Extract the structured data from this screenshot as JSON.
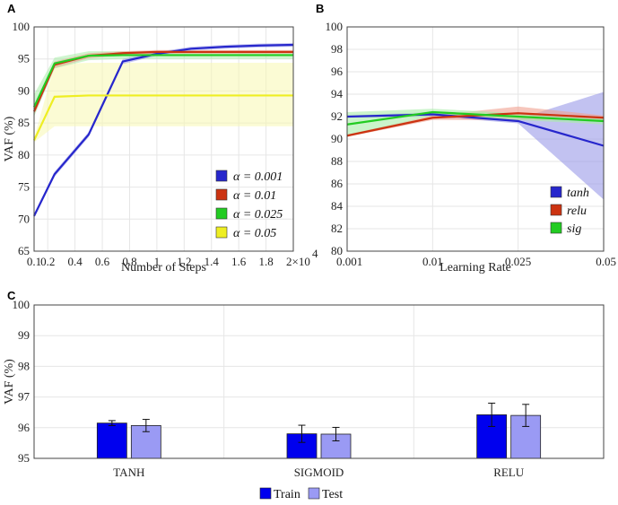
{
  "panels": {
    "a": "A",
    "b": "B",
    "c": "C"
  },
  "chart_data": [
    {
      "type": "line",
      "panel": "A",
      "xlabel": "Number of Steps",
      "ylabel": "VAF (%)",
      "xlim": [
        0.1,
        2.0
      ],
      "ylim": [
        65,
        100
      ],
      "x_exponent_label": "×10",
      "x_exponent_sup": "4",
      "x_multiplier": "2",
      "x_ticks": [
        0.1,
        0.2,
        0.4,
        0.6,
        0.8,
        1,
        1.2,
        1.4,
        1.6,
        1.8,
        2
      ],
      "x_tick_labels": [
        "0.1",
        "0.2",
        "0.4",
        "0.6",
        "0.8",
        "1",
        "1.2",
        "1.4",
        "1.6",
        "1.8",
        ""
      ],
      "y_ticks": [
        65,
        70,
        75,
        80,
        85,
        90,
        95,
        100
      ],
      "x": [
        0.1,
        0.25,
        0.5,
        0.75,
        1.0,
        1.25,
        1.5,
        1.75,
        2.0
      ],
      "series": [
        {
          "name": "α = 0.001",
          "color": "#2626cc",
          "band": "#9a9ae8",
          "values": [
            70.5,
            77.0,
            83.2,
            94.6,
            95.8,
            96.6,
            96.9,
            97.1,
            97.2
          ],
          "lower": [
            70.2,
            76.6,
            82.8,
            94.2,
            95.5,
            96.3,
            96.6,
            96.8,
            96.9
          ],
          "upper": [
            70.8,
            77.4,
            83.6,
            95.0,
            96.1,
            96.9,
            97.2,
            97.4,
            97.5
          ]
        },
        {
          "name": "α = 0.01",
          "color": "#cc3311",
          "band": "#f0a090",
          "values": [
            86.8,
            94.1,
            95.5,
            95.9,
            96.1,
            96.1,
            96.1,
            96.1,
            96.1
          ],
          "lower": [
            86.3,
            93.6,
            95.1,
            95.6,
            95.8,
            95.8,
            95.8,
            95.8,
            95.8
          ],
          "upper": [
            87.3,
            94.6,
            95.9,
            96.2,
            96.4,
            96.4,
            96.4,
            96.4,
            96.4
          ]
        },
        {
          "name": "α = 0.025",
          "color": "#22cc22",
          "band": "#a8eca8",
          "values": [
            87.5,
            94.3,
            95.5,
            95.6,
            95.6,
            95.6,
            95.6,
            95.6,
            95.6
          ],
          "lower": [
            86.0,
            93.5,
            94.8,
            95.0,
            95.0,
            95.0,
            95.0,
            95.0,
            95.0
          ],
          "upper": [
            89.5,
            95.2,
            96.2,
            96.2,
            96.2,
            96.2,
            96.2,
            96.2,
            96.2
          ]
        },
        {
          "name": "α = 0.05",
          "color": "#eeee22",
          "band": "#f7f7b0",
          "values": [
            82.3,
            89.1,
            89.3,
            89.3,
            89.3,
            89.3,
            89.3,
            89.3,
            89.3
          ],
          "lower": [
            82.0,
            84.5,
            84.5,
            84.5,
            84.5,
            84.5,
            84.5,
            84.5,
            84.5
          ],
          "upper": [
            82.6,
            94.2,
            94.4,
            94.4,
            94.4,
            94.4,
            94.4,
            94.4,
            94.4
          ]
        }
      ],
      "legend": "bottom-right",
      "grid": true
    },
    {
      "type": "line",
      "panel": "B",
      "xlabel": "Learning Rate",
      "ylabel": "",
      "categories": [
        "0.001",
        "0.01",
        "0.025",
        "0.05"
      ],
      "ylim": [
        80,
        100
      ],
      "y_ticks": [
        80,
        82,
        84,
        86,
        88,
        90,
        92,
        94,
        96,
        98,
        100
      ],
      "series": [
        {
          "name": "tanh",
          "color": "#2626cc",
          "band": "#9a9ae8",
          "values": [
            92.0,
            92.2,
            91.6,
            89.4
          ],
          "lower": [
            91.9,
            92.0,
            91.4,
            84.6
          ],
          "upper": [
            92.1,
            92.4,
            91.8,
            94.2
          ]
        },
        {
          "name": "relu",
          "color": "#cc3311",
          "band": "#f0a090",
          "values": [
            90.3,
            91.9,
            92.3,
            91.9
          ],
          "lower": [
            90.2,
            91.7,
            91.7,
            91.7
          ],
          "upper": [
            90.4,
            92.1,
            92.9,
            92.1
          ]
        },
        {
          "name": "sig",
          "color": "#22cc22",
          "band": "#a8eca8",
          "values": [
            91.3,
            92.4,
            92.0,
            91.6
          ],
          "lower": [
            90.2,
            92.1,
            91.7,
            91.3
          ],
          "upper": [
            92.4,
            92.7,
            92.3,
            91.9
          ]
        }
      ],
      "legend": "bottom-right",
      "grid": true
    },
    {
      "type": "bar",
      "panel": "C",
      "xlabel": "",
      "ylabel": "VAF (%)",
      "categories": [
        "TANH",
        "SIGMOID",
        "RELU"
      ],
      "ylim": [
        95,
        100
      ],
      "y_ticks": [
        95,
        96,
        97,
        98,
        99,
        100
      ],
      "series": [
        {
          "name": "Train",
          "color": "#0000ee",
          "values": [
            96.15,
            95.8,
            96.42
          ],
          "errors": [
            0.08,
            0.28,
            0.38
          ]
        },
        {
          "name": "Test",
          "color": "#9a9af4",
          "values": [
            96.07,
            95.79,
            96.4
          ],
          "errors": [
            0.2,
            0.22,
            0.36
          ]
        }
      ],
      "legend": "bottom-center",
      "grid": true
    }
  ]
}
